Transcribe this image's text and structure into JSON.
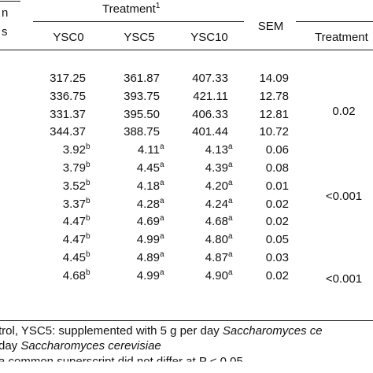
{
  "header": {
    "left_line1": "n",
    "left_line2": "s",
    "treatment_label": "Treatment",
    "treatment_sup": "1",
    "columns": [
      "YSC0",
      "YSC5",
      "YSC10"
    ],
    "sem_label": "SEM",
    "treatment_col_label": "Treatment"
  },
  "rows": [
    {
      "ysc0": "317.25",
      "ysc0_sup": "",
      "ysc5": "361.87",
      "ysc5_sup": "",
      "ysc10": "407.33",
      "ysc10_sup": "",
      "sem": "14.09"
    },
    {
      "ysc0": "336.75",
      "ysc0_sup": "",
      "ysc5": "393.75",
      "ysc5_sup": "",
      "ysc10": "421.11",
      "ysc10_sup": "",
      "sem": "12.78"
    },
    {
      "ysc0": "331.37",
      "ysc0_sup": "",
      "ysc5": "395.50",
      "ysc5_sup": "",
      "ysc10": "406.33",
      "ysc10_sup": "",
      "sem": "12.81"
    },
    {
      "ysc0": "344.37",
      "ysc0_sup": "",
      "ysc5": "388.75",
      "ysc5_sup": "",
      "ysc10": "401.44",
      "ysc10_sup": "",
      "sem": "10.72"
    },
    {
      "ysc0": "3.92",
      "ysc0_sup": "b",
      "ysc5": "4.11",
      "ysc5_sup": "a",
      "ysc10": "4.13",
      "ysc10_sup": "a",
      "sem": "0.06"
    },
    {
      "ysc0": "3.79",
      "ysc0_sup": "b",
      "ysc5": "4.45",
      "ysc5_sup": "a",
      "ysc10": "4.39",
      "ysc10_sup": "a",
      "sem": "0.08"
    },
    {
      "ysc0": "3.52",
      "ysc0_sup": "b",
      "ysc5": "4.18",
      "ysc5_sup": "a",
      "ysc10": "4.20",
      "ysc10_sup": "a",
      "sem": "0.01"
    },
    {
      "ysc0": "3.37",
      "ysc0_sup": "b",
      "ysc5": "4.28",
      "ysc5_sup": "a",
      "ysc10": "4.24",
      "ysc10_sup": "a",
      "sem": "0.02"
    },
    {
      "ysc0": "4.47",
      "ysc0_sup": "b",
      "ysc5": "4.69",
      "ysc5_sup": "a",
      "ysc10": "4.68",
      "ysc10_sup": "a",
      "sem": "0.02"
    },
    {
      "ysc0": "4.47",
      "ysc0_sup": "b",
      "ysc5": "4.99",
      "ysc5_sup": "a",
      "ysc10": "4.80",
      "ysc10_sup": "a",
      "sem": "0.05"
    },
    {
      "ysc0": "4.45",
      "ysc0_sup": "b",
      "ysc5": "4.89",
      "ysc5_sup": "a",
      "ysc10": "4.87",
      "ysc10_sup": "a",
      "sem": "0.03"
    },
    {
      "ysc0": "4.68",
      "ysc0_sup": "b",
      "ysc5": "4.99",
      "ysc5_sup": "a",
      "ysc10": "4.90",
      "ysc10_sup": "a",
      "sem": "0.02"
    }
  ],
  "p_values": [
    "0.02",
    "<0.001",
    "<0.001"
  ],
  "footnotes": {
    "line1_text": "trol, YSC5: supplemented with 5 g per day ",
    "line1_italic": "Saccharomyces ce",
    "line2_text": "day ",
    "line2_italic": "Saccharomyces cerevisiae",
    "line3_text": "a common superscript did not differ at P < 0.05"
  }
}
